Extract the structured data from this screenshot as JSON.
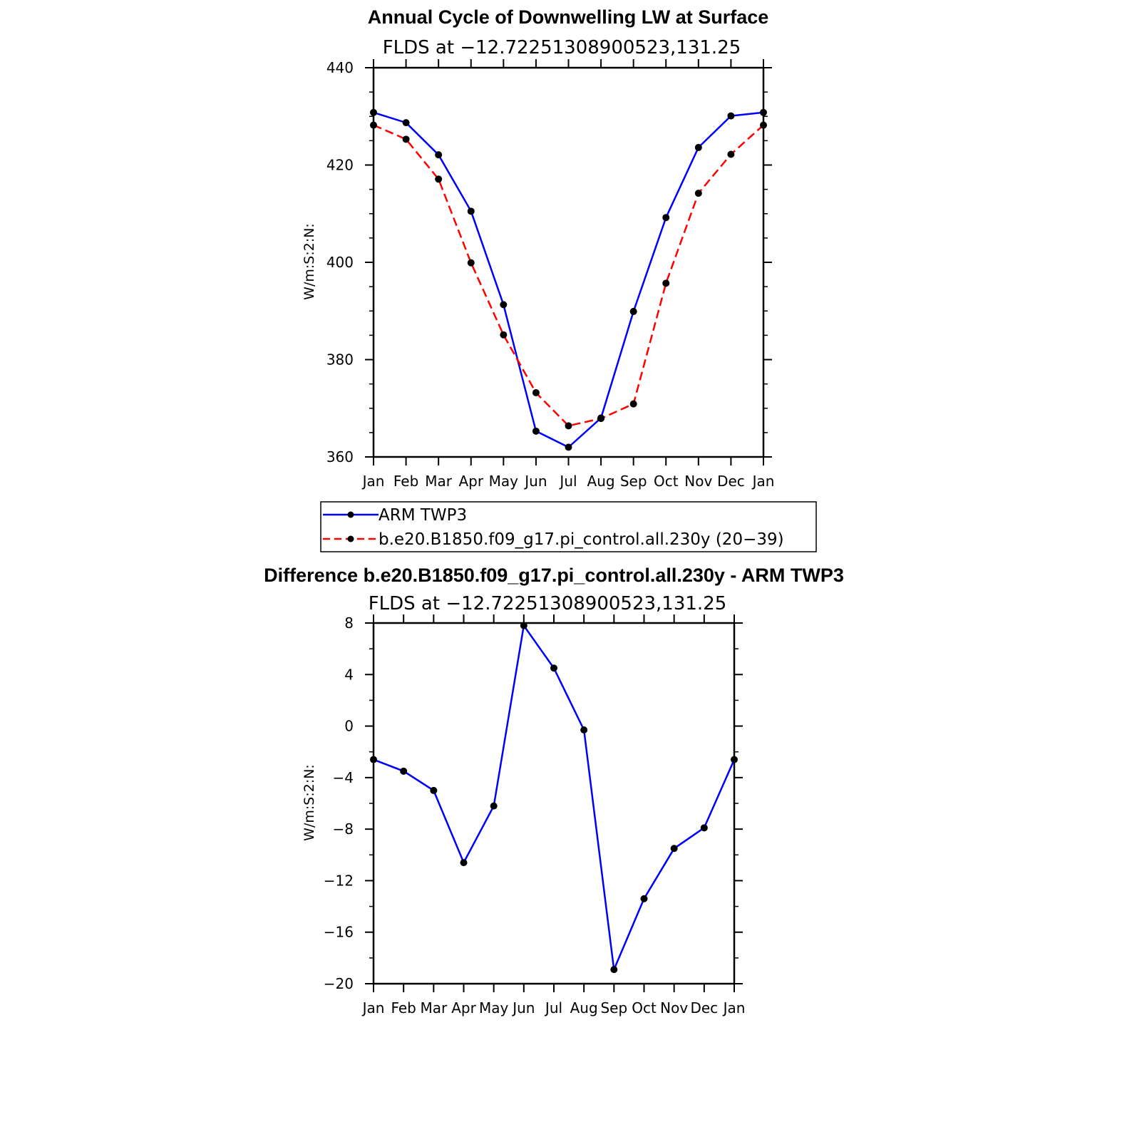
{
  "chart_data": [
    {
      "type": "line",
      "title": "Annual Cycle of Downwelling LW at Surface",
      "subtitle": "FLDS at −12.72251308900523,131.25",
      "ylabel": "W/m:S:2:N:",
      "xlabel": "",
      "categories": [
        "Jan",
        "Feb",
        "Mar",
        "Apr",
        "May",
        "Jun",
        "Jul",
        "Aug",
        "Sep",
        "Oct",
        "Nov",
        "Dec",
        "Jan"
      ],
      "ylim": [
        360,
        440
      ],
      "yticks": [
        360,
        380,
        400,
        420,
        440
      ],
      "ytick_labels": [
        "360",
        "380",
        "400",
        "420",
        "440"
      ],
      "series": [
        {
          "name": "ARM TWP3",
          "color": "#0000ff",
          "dash": "solid",
          "values": [
            430.8,
            428.7,
            422.1,
            410.5,
            391.3,
            365.3,
            362.0,
            368.0,
            389.9,
            409.2,
            423.6,
            430.1,
            430.8
          ]
        },
        {
          "name": "b.e20.B1850.f09_g17.pi_control.all.230y (20−39)",
          "color": "#ff0000",
          "dash": "dashed",
          "values": [
            428.2,
            425.3,
            417.1,
            399.9,
            385.1,
            373.2,
            366.4,
            367.9,
            370.9,
            395.7,
            414.2,
            422.2,
            428.2
          ]
        }
      ],
      "legend": "below"
    },
    {
      "type": "line",
      "title": "Difference b.e20.B1850.f09_g17.pi_control.all.230y - ARM TWP3",
      "subtitle": "FLDS at −12.72251308900523,131.25",
      "ylabel": "W/m:S:2:N:",
      "xlabel": "",
      "categories": [
        "Jan",
        "Feb",
        "Mar",
        "Apr",
        "May",
        "Jun",
        "Jul",
        "Aug",
        "Sep",
        "Oct",
        "Nov",
        "Dec",
        "Jan"
      ],
      "ylim": [
        -20,
        8
      ],
      "yticks": [
        -20,
        -16,
        -12,
        -8,
        -4,
        0,
        4,
        8
      ],
      "ytick_labels": [
        "−20",
        "−16",
        "−12",
        "−8",
        "−4",
        "0",
        "4",
        "8"
      ],
      "series": [
        {
          "color": "#0000ff",
          "dash": "solid",
          "values": [
            -2.6,
            -3.5,
            -5.0,
            -10.6,
            -6.2,
            7.8,
            4.5,
            -0.3,
            -18.9,
            -13.4,
            -9.5,
            -7.9,
            -2.6
          ]
        }
      ]
    }
  ]
}
